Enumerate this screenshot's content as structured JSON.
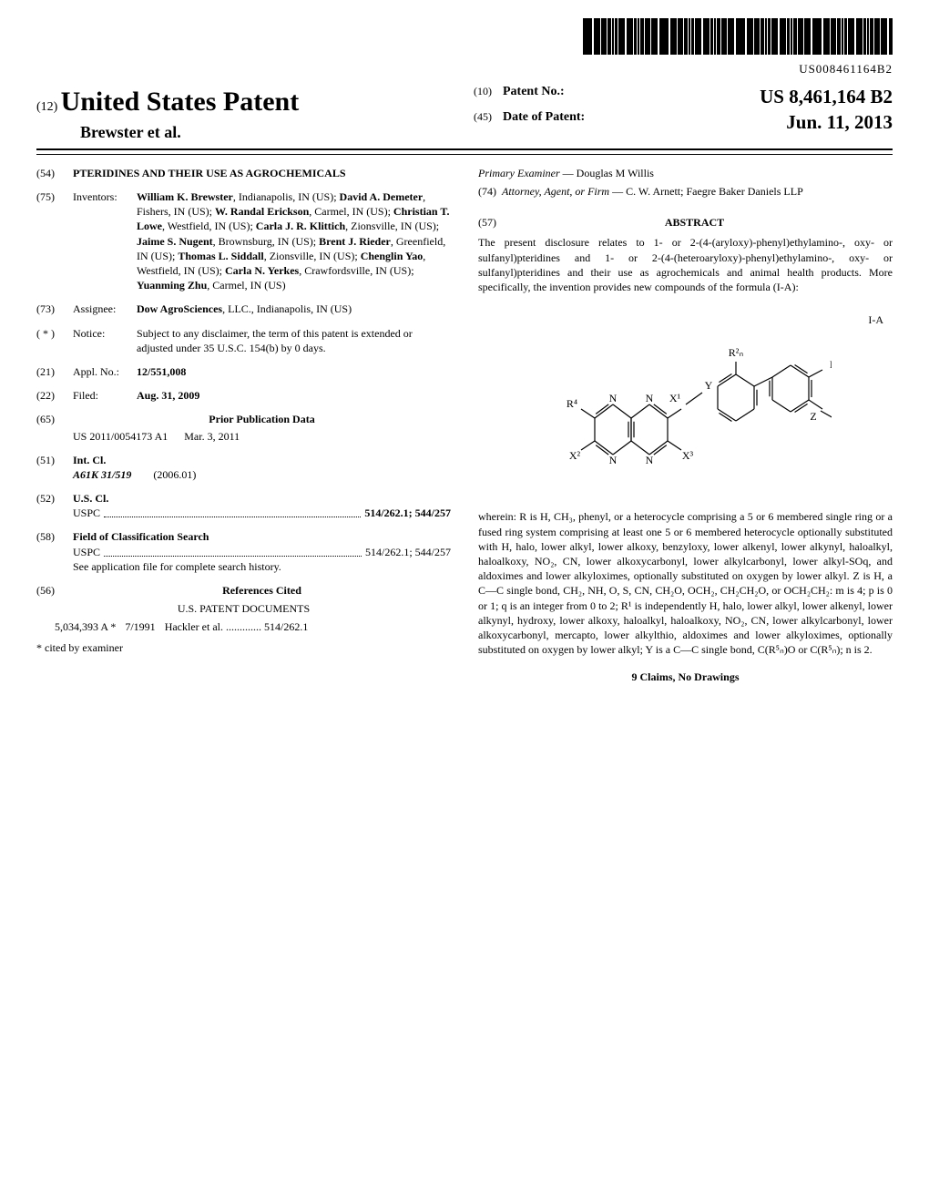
{
  "barcode_text": "US008461164B2",
  "header": {
    "kind_prefix": "(12)",
    "kind": "United States Patent",
    "authors": "Brewster et al.",
    "patno_prefix": "(10)",
    "patno_label": "Patent No.:",
    "patno_value": "US 8,461,164 B2",
    "date_prefix": "(45)",
    "date_label": "Date of Patent:",
    "date_value": "Jun. 11, 2013"
  },
  "left": {
    "title_num": "(54)",
    "title": "PTERIDINES AND THEIR USE AS AGROCHEMICALS",
    "inventors_num": "(75)",
    "inventors_label": "Inventors:",
    "inventors": "William K. Brewster, Indianapolis, IN (US); David A. Demeter, Fishers, IN (US); W. Randal Erickson, Carmel, IN (US); Christian T. Lowe, Westfield, IN (US); Carla J. R. Klittich, Zionsville, IN (US); Jaime S. Nugent, Brownsburg, IN (US); Brent J. Rieder, Greenfield, IN (US); Thomas L. Siddall, Zionsville, IN (US); Chenglin Yao, Westfield, IN (US); Carla N. Yerkes, Crawfordsville, IN (US); Yuanming Zhu, Carmel, IN (US)",
    "assignee_num": "(73)",
    "assignee_label": "Assignee:",
    "assignee": "Dow AgroSciences, LLC., Indianapolis, IN (US)",
    "notice_num": "( * )",
    "notice_label": "Notice:",
    "notice": "Subject to any disclaimer, the term of this patent is extended or adjusted under 35 U.S.C. 154(b) by 0 days.",
    "applno_num": "(21)",
    "applno_label": "Appl. No.:",
    "applno": "12/551,008",
    "filed_num": "(22)",
    "filed_label": "Filed:",
    "filed": "Aug. 31, 2009",
    "prior_num": "(65)",
    "prior_head": "Prior Publication Data",
    "prior_pub": "US 2011/0054173 A1",
    "prior_date": "Mar. 3, 2011",
    "intcl_num": "(51)",
    "intcl_label": "Int. Cl.",
    "intcl_code": "A61K 31/519",
    "intcl_year": "(2006.01)",
    "uscl_num": "(52)",
    "uscl_label": "U.S. Cl.",
    "uscl_line_label": "USPC",
    "uscl_values": "514/262.1; 544/257",
    "search_num": "(58)",
    "search_label": "Field of Classification Search",
    "search_line_label": "USPC",
    "search_values": "514/262.1; 544/257",
    "search_note": "See application file for complete search history.",
    "refs_num": "(56)",
    "refs_head": "References Cited",
    "refs_sub": "U.S. PATENT DOCUMENTS",
    "ref_patno": "5,034,393 A *",
    "ref_date": "7/1991",
    "ref_authors": "Hackler et al.",
    "ref_class": "514/262.1",
    "cited_note": "* cited by examiner"
  },
  "right": {
    "examiner_label": "Primary Examiner",
    "examiner": "— Douglas M Willis",
    "attorney_num": "(74)",
    "attorney_label": "Attorney, Agent, or Firm",
    "attorney": "— C. W. Arnett; Faegre Baker Daniels LLP",
    "abstract_num": "(57)",
    "abstract_head": "ABSTRACT",
    "abstract_p1": "The present disclosure relates to 1- or 2-(4-(aryloxy)-phenyl)ethylamino-, oxy- or sulfanyl)pteridines and 1- or 2-(4-(heteroaryloxy)-phenyl)ethylamino-, oxy- or sulfanyl)pteridines and their use as agrochemicals and animal health products. More specifically, the invention provides new compounds of the formula (I-A):",
    "formula_label": "I-A",
    "abstract_p2": "wherein: R is H, CH₃, phenyl, or a heterocycle comprising a 5 or 6 membered single ring or a fused ring system comprising at least one 5 or 6 membered heterocycle optionally substituted with H, halo, lower alkyl, lower alkoxy, benzyloxy, lower alkenyl, lower alkynyl, haloalkyl, haloalkoxy, NO₂, CN, lower alkoxycarbonyl, lower alkylcarbonyl, lower alkyl-SOq, and aldoximes and lower alkyloximes, optionally substituted on oxygen by lower alkyl. Z is H, a C—C single bond, CH₂, NH, O, S, CN, CH₂O, OCH₂, CH₂CH₂O, or OCH₂CH₂: m is 4; p is 0 or 1; q is an integer from 0 to 2; R¹ is independently H, halo, lower alkyl, lower alkenyl, lower alkynyl, hydroxy, lower alkoxy, haloalkyl, haloalkoxy, NO₂, CN, lower alkylcarbonyl, lower alkoxycarbonyl, mercapto, lower alkylthio, aldoximes and lower alkyloximes, optionally substituted on oxygen by lower alkyl; Y is a C—C single bond, C(R⁵ₙ)O or C(R⁵ₙ); n is 2.",
    "claims": "9 Claims, No Drawings"
  },
  "formula": {
    "labels": {
      "R2n": "R²ₙ",
      "R1m": "R¹ₘ",
      "X1": "X¹",
      "Y": "Y",
      "R4": "R⁴",
      "N1": "N",
      "N2": "N",
      "N3": "N",
      "N4": "N",
      "X2": "X²",
      "X3": "X³",
      "Z": "Z",
      "Rp": "Rₚ"
    },
    "stroke": "#000000",
    "stroke_width": 1.2,
    "font_size": 12
  }
}
